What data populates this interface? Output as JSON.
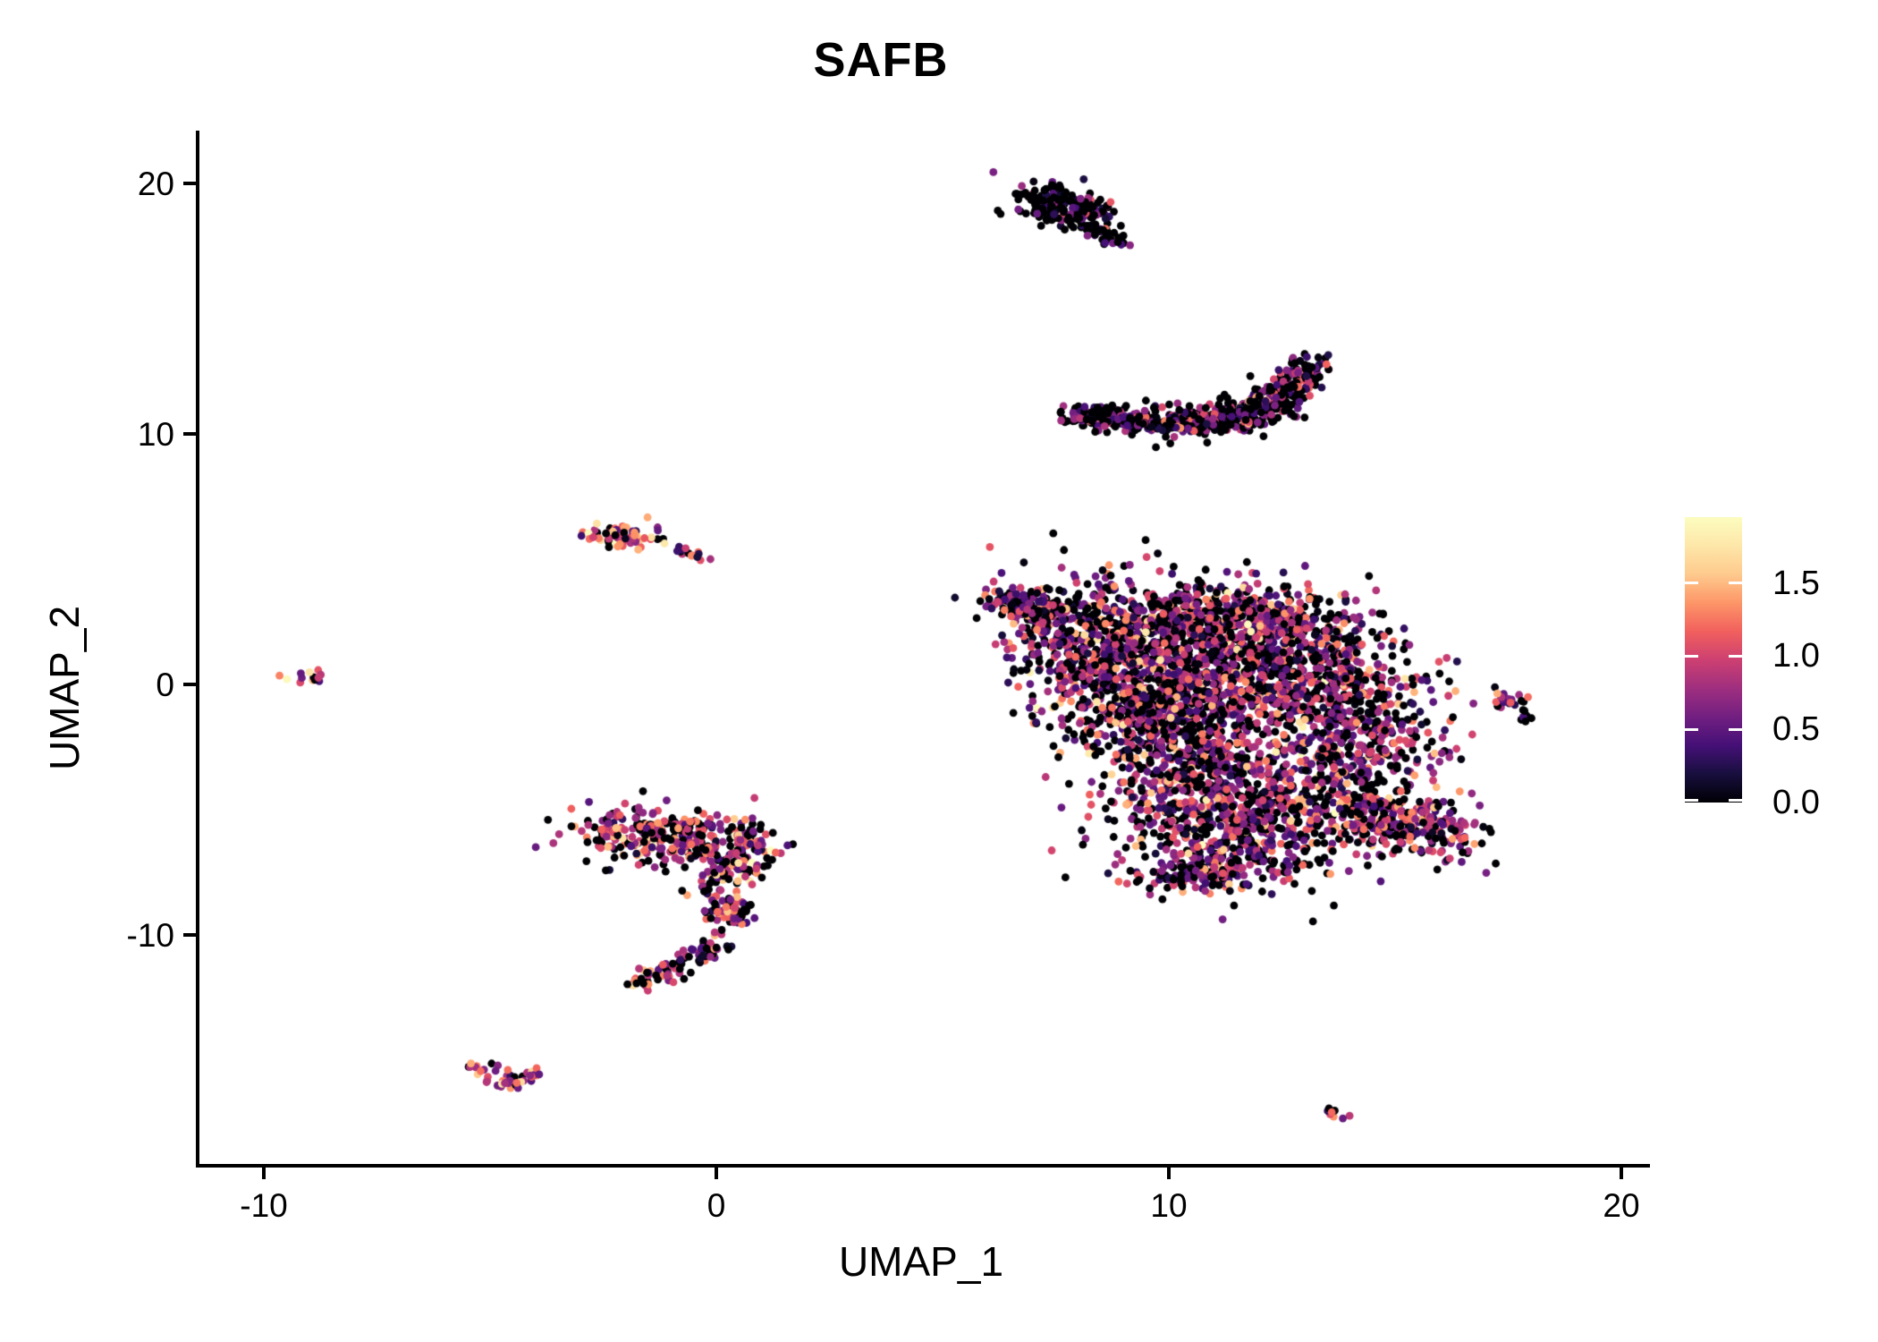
{
  "title": "SAFB",
  "axes": {
    "x_label": "UMAP_1",
    "y_label": "UMAP_2",
    "x_ticks": [
      -10,
      0,
      10,
      20
    ],
    "y_ticks": [
      20,
      10,
      0,
      -10
    ]
  },
  "legend": {
    "tick_labels": [
      "1.5",
      "1.0",
      "0.5",
      "0.0"
    ],
    "tick_values": [
      1.5,
      1.0,
      0.5,
      0.0
    ]
  },
  "colors": {
    "background": "#ffffff",
    "axis": "#000000",
    "text": "#000000",
    "zero_expression": "#000004"
  },
  "chart_data": {
    "type": "scatter",
    "title": "SAFB",
    "xlabel": "UMAP_1",
    "ylabel": "UMAP_2",
    "xlim": [
      -11.4,
      20.5
    ],
    "ylim": [
      -19.2,
      22.0
    ],
    "grid": false,
    "legend_position": "right",
    "colorbar": {
      "range": [
        0,
        1.95
      ],
      "ticks": [
        0.0,
        0.5,
        1.0,
        1.5
      ],
      "colormap": "magma"
    },
    "colormap": [
      "#000004",
      "#180f3e",
      "#451077",
      "#721f81",
      "#9f2f7f",
      "#cd4071",
      "#f1605d",
      "#fd9668",
      "#feca8d",
      "#fde7a9",
      "#fcfdbf"
    ],
    "point_radius_px": 4.4,
    "seed": 1337,
    "clusters": [
      {
        "name": "comet-top",
        "n": 230,
        "expr": {
          "p_zero": 0.65,
          "mean": 0.5,
          "sd": 0.3
        },
        "parts": [
          {
            "type": "ellipse",
            "cx": 7.35,
            "cy": 19.4,
            "rx": 0.4,
            "ry": 0.33,
            "weight": 6
          },
          {
            "type": "ellipse",
            "cx": 7.95,
            "cy": 18.9,
            "rx": 0.45,
            "ry": 0.33,
            "weight": 8
          },
          {
            "type": "line",
            "x1": 8.2,
            "y1": 18.4,
            "x2": 8.9,
            "y2": 17.6,
            "w": 0.16,
            "weight": 4
          }
        ]
      },
      {
        "name": "crescent",
        "n": 660,
        "expr": {
          "p_zero": 0.48,
          "mean": 0.65,
          "sd": 0.35
        },
        "parts": [
          {
            "type": "line",
            "x1": 7.85,
            "y1": 10.75,
            "x2": 9.6,
            "y2": 10.45,
            "w": 0.22,
            "weight": 5
          },
          {
            "type": "line",
            "x1": 9.6,
            "y1": 10.45,
            "x2": 11.4,
            "y2": 10.6,
            "w": 0.3,
            "weight": 6
          },
          {
            "type": "line",
            "x1": 11.4,
            "y1": 10.6,
            "x2": 12.5,
            "y2": 11.4,
            "w": 0.35,
            "weight": 5
          },
          {
            "type": "line",
            "x1": 12.5,
            "y1": 11.4,
            "x2": 13.05,
            "y2": 12.75,
            "w": 0.28,
            "weight": 4
          }
        ]
      },
      {
        "name": "main-blob",
        "n": 4300,
        "expr": {
          "p_zero": 0.34,
          "mean": 0.72,
          "sd": 0.45
        },
        "parts": [
          {
            "type": "line",
            "x1": 6.3,
            "y1": 3.6,
            "x2": 7.5,
            "y2": 2.7,
            "w": 0.3,
            "weight": 4
          },
          {
            "type": "ellipse",
            "cx": 8.4,
            "cy": 1.6,
            "rx": 1.0,
            "ry": 1.4,
            "weight": 12
          },
          {
            "type": "ellipse",
            "cx": 10.4,
            "cy": 2.6,
            "rx": 1.4,
            "ry": 0.8,
            "weight": 10
          },
          {
            "type": "ellipse",
            "cx": 12.3,
            "cy": 2.3,
            "rx": 1.0,
            "ry": 0.9,
            "weight": 8
          },
          {
            "type": "ellipse",
            "cx": 13.2,
            "cy": 0.2,
            "rx": 1.1,
            "ry": 1.2,
            "weight": 10
          },
          {
            "type": "ellipse",
            "cx": 10.9,
            "cy": 0.2,
            "rx": 1.4,
            "ry": 1.4,
            "weight": 14
          },
          {
            "type": "ellipse",
            "cx": 9.4,
            "cy": -0.8,
            "rx": 0.9,
            "ry": 1.2,
            "weight": 8
          },
          {
            "type": "ellipse",
            "cx": 10.4,
            "cy": -3.2,
            "rx": 1.1,
            "ry": 1.4,
            "weight": 10
          },
          {
            "type": "ellipse",
            "cx": 12.0,
            "cy": -4.6,
            "rx": 1.4,
            "ry": 1.2,
            "weight": 12
          },
          {
            "type": "ellipse",
            "cx": 14.3,
            "cy": -2.2,
            "rx": 1.0,
            "ry": 1.3,
            "weight": 8
          },
          {
            "type": "line",
            "x1": 13.8,
            "y1": -4.5,
            "x2": 16.2,
            "y2": -6.2,
            "w": 0.6,
            "weight": 8
          },
          {
            "type": "ellipse",
            "cx": 11.4,
            "cy": -6.5,
            "rx": 1.3,
            "ry": 0.9,
            "weight": 8
          },
          {
            "type": "ellipse",
            "cx": 10.7,
            "cy": -7.5,
            "rx": 0.6,
            "ry": 0.4,
            "weight": 3
          }
        ]
      },
      {
        "name": "satellite-right",
        "n": 26,
        "expr": {
          "p_zero": 0.3,
          "mean": 0.85,
          "sd": 0.5
        },
        "parts": [
          {
            "type": "ellipse",
            "cx": 17.55,
            "cy": -0.55,
            "rx": 0.25,
            "ry": 0.28,
            "weight": 3
          },
          {
            "type": "line",
            "x1": 17.85,
            "y1": -1.0,
            "x2": 17.9,
            "y2": -1.5,
            "w": 0.08,
            "weight": 1
          }
        ]
      },
      {
        "name": "left-tiny",
        "n": 14,
        "expr": {
          "p_zero": 0.1,
          "mean": 1.1,
          "sd": 0.4
        },
        "parts": [
          {
            "type": "ellipse",
            "cx": -9.05,
            "cy": 0.4,
            "rx": 0.26,
            "ry": 0.2,
            "weight": 1
          }
        ]
      },
      {
        "name": "midleft-main",
        "n": 70,
        "expr": {
          "p_zero": 0.15,
          "mean": 1.0,
          "sd": 0.5
        },
        "parts": [
          {
            "type": "ellipse",
            "cx": -2.05,
            "cy": 5.95,
            "rx": 0.42,
            "ry": 0.26,
            "weight": 1
          }
        ]
      },
      {
        "name": "midleft-strand",
        "n": 14,
        "expr": {
          "p_zero": 0.2,
          "mean": 0.7,
          "sd": 0.45
        },
        "parts": [
          {
            "type": "line",
            "x1": -0.85,
            "y1": 5.4,
            "x2": -0.3,
            "y2": 5.1,
            "w": 0.1,
            "weight": 1
          }
        ]
      },
      {
        "name": "seahorse",
        "n": 560,
        "expr": {
          "p_zero": 0.32,
          "mean": 0.82,
          "sd": 0.45
        },
        "parts": [
          {
            "type": "ellipse",
            "cx": -1.85,
            "cy": -6.05,
            "rx": 0.75,
            "ry": 0.6,
            "weight": 10
          },
          {
            "type": "ellipse",
            "cx": -0.55,
            "cy": -6.1,
            "rx": 0.75,
            "ry": 0.55,
            "weight": 9
          },
          {
            "type": "ellipse",
            "cx": 0.5,
            "cy": -6.4,
            "rx": 0.5,
            "ry": 0.5,
            "weight": 5
          },
          {
            "type": "ellipse",
            "cx": 0.35,
            "cy": -7.4,
            "rx": 0.33,
            "ry": 0.33,
            "weight": 3
          },
          {
            "type": "line",
            "x1": 0.0,
            "y1": -7.9,
            "x2": 0.35,
            "y2": -9.4,
            "w": 0.28,
            "weight": 4
          },
          {
            "type": "ellipse",
            "cx": 0.3,
            "cy": -9.2,
            "rx": 0.3,
            "ry": 0.3,
            "weight": 2
          },
          {
            "type": "line",
            "x1": 0.1,
            "y1": -10.3,
            "x2": -1.2,
            "y2": -11.5,
            "w": 0.22,
            "weight": 3.5
          },
          {
            "type": "line",
            "x1": -1.2,
            "y1": -11.5,
            "x2": -2.05,
            "y2": -12.1,
            "w": 0.16,
            "weight": 2.5
          }
        ]
      },
      {
        "name": "wing-bottom-left",
        "n": 46,
        "expr": {
          "p_zero": 0.15,
          "mean": 1.0,
          "sd": 0.4
        },
        "parts": [
          {
            "type": "line",
            "x1": -5.35,
            "y1": -15.2,
            "x2": -4.55,
            "y2": -16.05,
            "w": 0.18,
            "weight": 3
          },
          {
            "type": "line",
            "x1": -4.55,
            "y1": -16.05,
            "x2": -3.95,
            "y2": -15.45,
            "w": 0.16,
            "weight": 2.5
          }
        ]
      },
      {
        "name": "bottom-right-tiny",
        "n": 9,
        "expr": {
          "p_zero": 0.15,
          "mean": 1.1,
          "sd": 0.4
        },
        "parts": [
          {
            "type": "line",
            "x1": 13.45,
            "y1": -16.85,
            "x2": 13.8,
            "y2": -17.25,
            "w": 0.12,
            "weight": 1
          }
        ]
      }
    ]
  }
}
